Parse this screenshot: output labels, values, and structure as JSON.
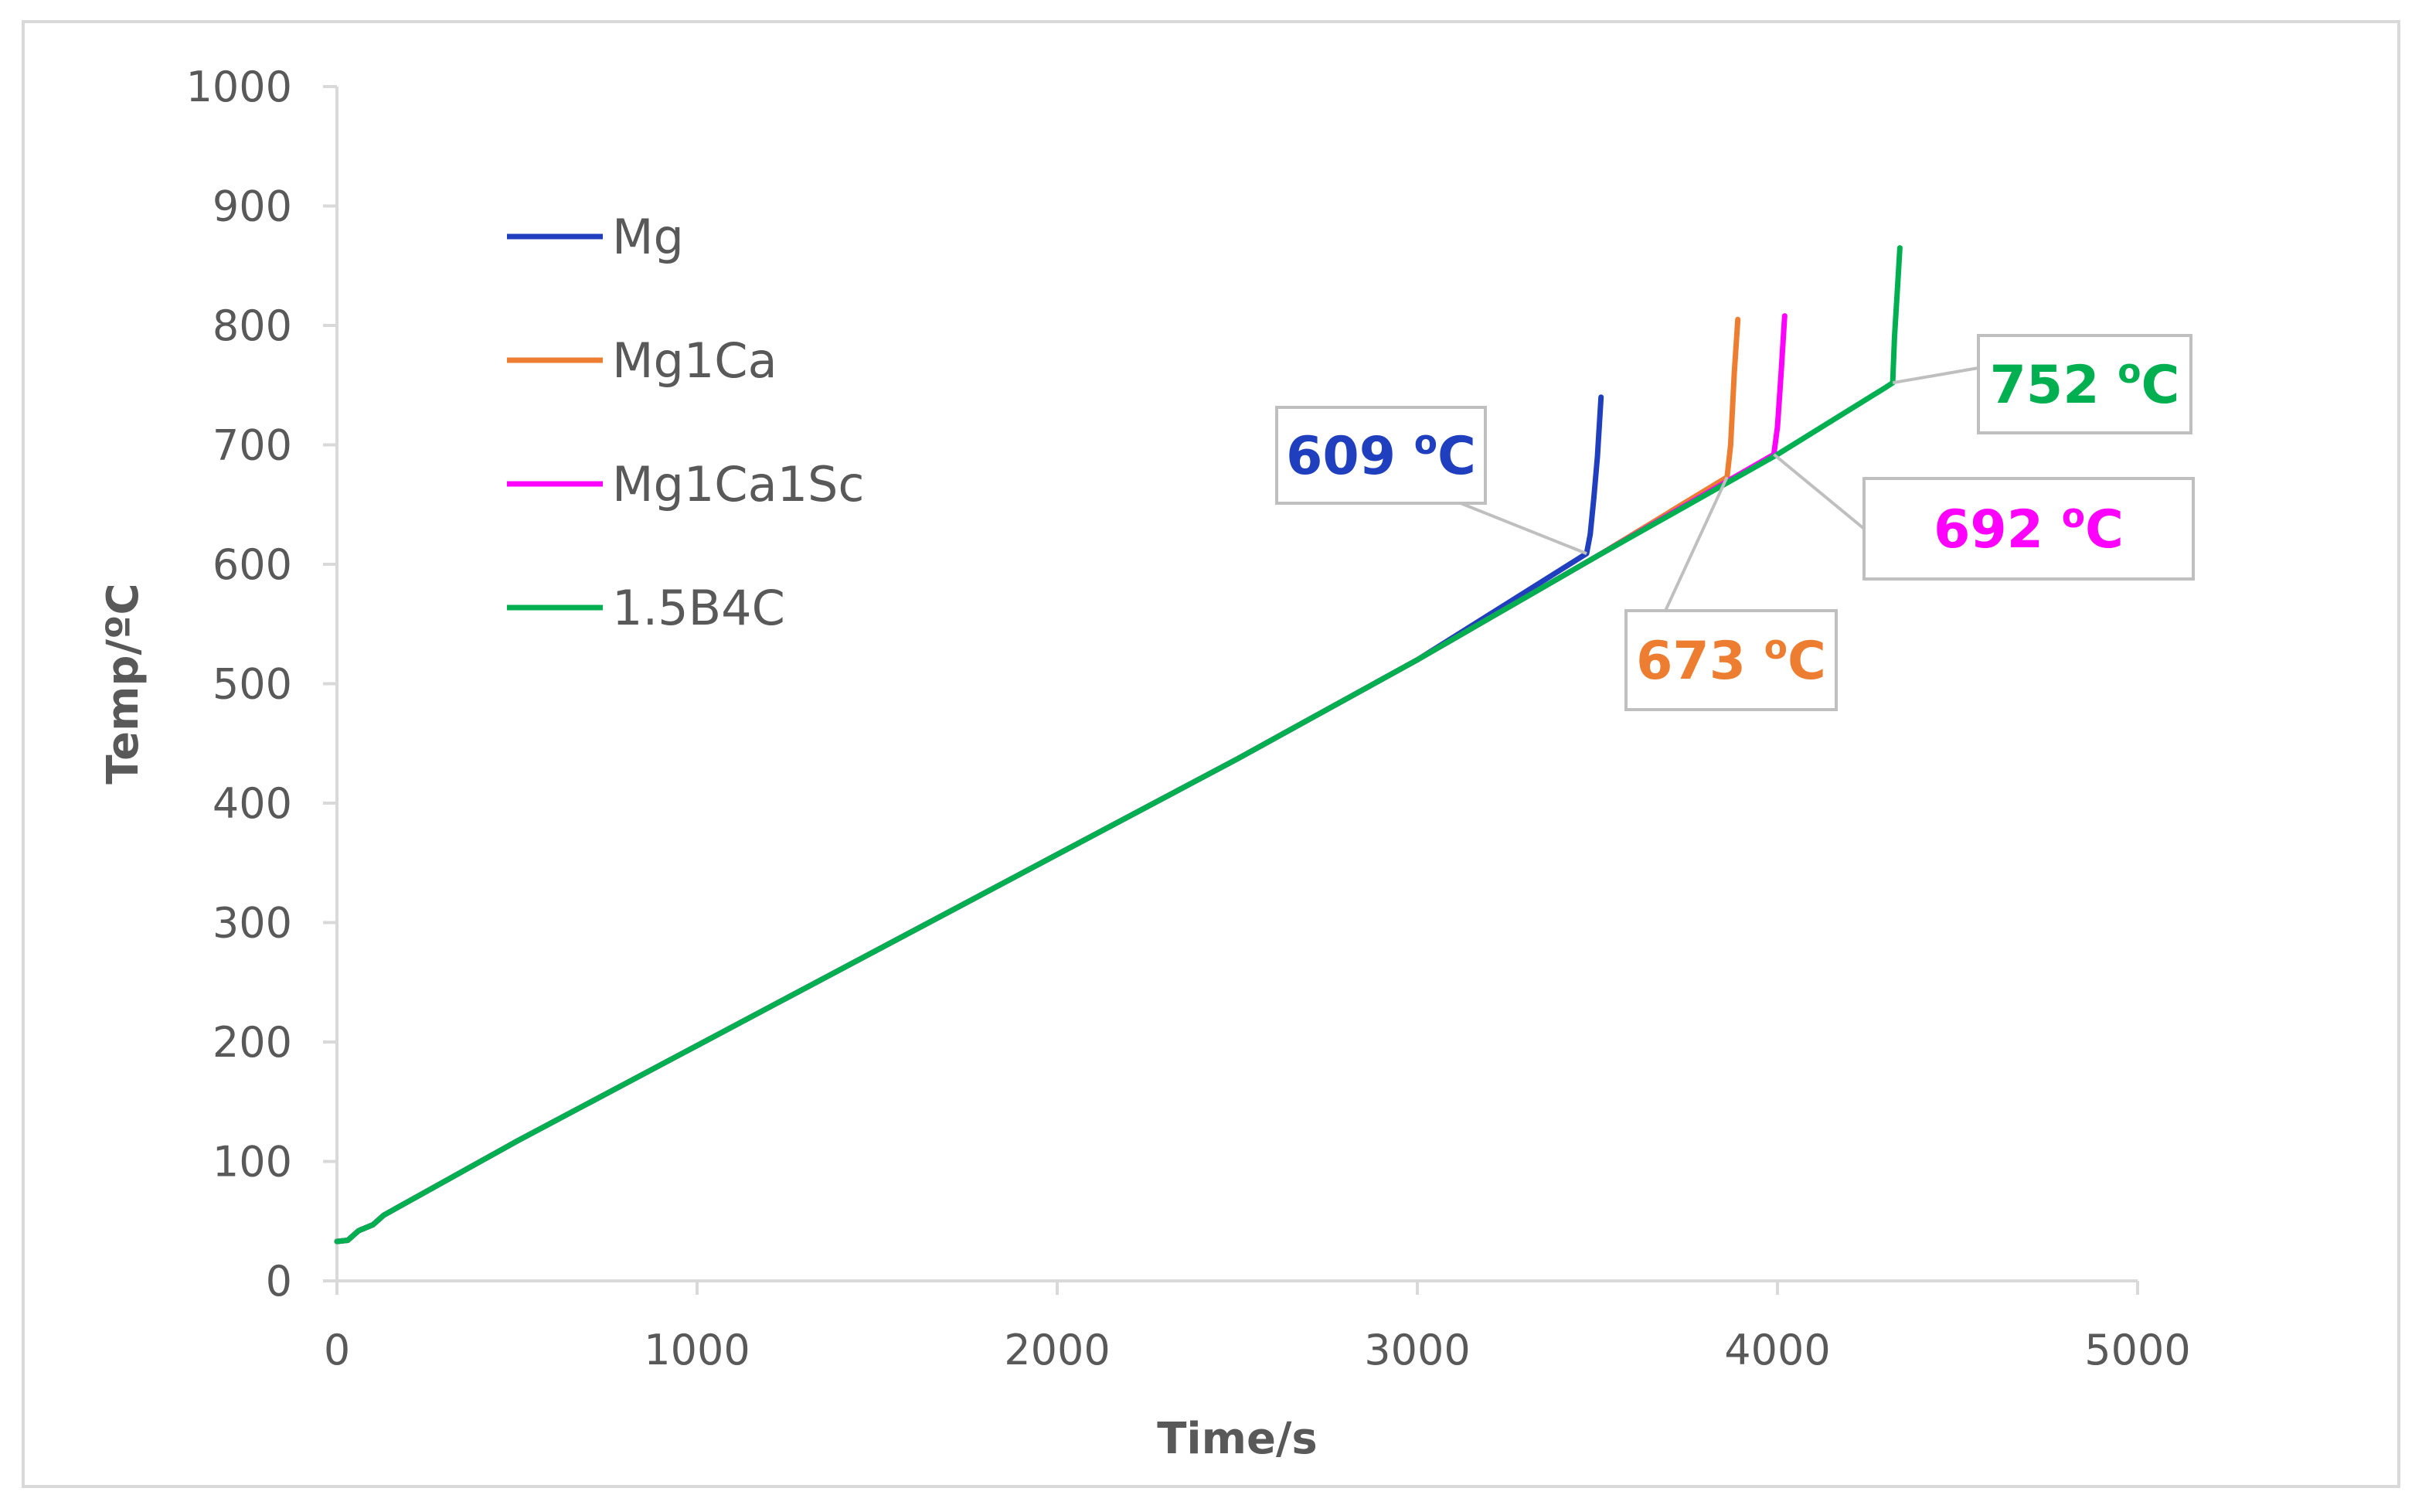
{
  "chart_data": {
    "type": "line",
    "title": "",
    "xlabel": "Time/s",
    "ylabel": "Temp/ºC",
    "xlim": [
      0,
      5000
    ],
    "ylim": [
      0,
      1000
    ],
    "x_ticks": [
      0,
      1000,
      2000,
      3000,
      4000,
      5000
    ],
    "y_ticks": [
      0,
      100,
      200,
      300,
      400,
      500,
      600,
      700,
      800,
      900,
      1000
    ],
    "x_tick_labels": [
      "0",
      "1000",
      "2000",
      "3000",
      "4000",
      "5000"
    ],
    "y_tick_labels": [
      "0",
      "100",
      "200",
      "300",
      "400",
      "500",
      "600",
      "700",
      "800",
      "900",
      "1000"
    ],
    "grid": false,
    "legend_position": "top-left",
    "series": [
      {
        "name": "Mg",
        "color": "#1f3fbf",
        "x": [
          0,
          30,
          60,
          100,
          130,
          500,
          1000,
          1500,
          2000,
          2500,
          3000,
          3470,
          3480,
          3490,
          3500,
          3510
        ],
        "y": [
          33,
          34,
          42,
          47,
          55,
          117,
          197,
          277,
          357,
          437,
          520,
          609,
          625,
          655,
          690,
          740
        ]
      },
      {
        "name": "Mg1Ca",
        "color": "#ed7d31",
        "x": [
          0,
          30,
          60,
          100,
          130,
          500,
          1000,
          1500,
          2000,
          2500,
          3000,
          3500,
          3860,
          3870,
          3880,
          3890
        ],
        "y": [
          33,
          34,
          42,
          47,
          55,
          117,
          197,
          277,
          357,
          437,
          520,
          607,
          673,
          700,
          760,
          805
        ]
      },
      {
        "name": "Mg1Ca1Sc",
        "color": "#ff00ff",
        "x": [
          0,
          30,
          60,
          100,
          130,
          500,
          1000,
          1500,
          2000,
          2500,
          3000,
          3500,
          3990,
          4000,
          4010,
          4020
        ],
        "y": [
          33,
          34,
          42,
          47,
          55,
          117,
          197,
          277,
          357,
          437,
          520,
          607,
          692,
          715,
          760,
          808
        ]
      },
      {
        "name": "1.5B4C",
        "color": "#00b050",
        "x": [
          0,
          30,
          60,
          100,
          130,
          500,
          1000,
          1500,
          2000,
          2500,
          3000,
          3500,
          4000,
          4300,
          4320,
          4325,
          4335,
          4340
        ],
        "y": [
          33,
          34,
          42,
          47,
          55,
          117,
          197,
          277,
          357,
          437,
          520,
          607,
          692,
          748,
          752,
          790,
          840,
          865
        ]
      }
    ],
    "annotations": [
      {
        "value": "609",
        "unit": "C",
        "sup": "o",
        "series": "Mg",
        "color": "#1f3fbf",
        "point": [
          3470,
          609
        ]
      },
      {
        "value": "673",
        "unit": "C",
        "sup": "o",
        "series": "Mg1Ca",
        "color": "#ed7d31",
        "point": [
          3860,
          673
        ]
      },
      {
        "value": "692",
        "unit": "C",
        "sup": "o",
        "series": "Mg1Ca1Sc",
        "color": "#ff00ff",
        "point": [
          3990,
          692
        ]
      },
      {
        "value": "752",
        "unit": "C",
        "sup": "o",
        "series": "1.5B4C",
        "color": "#00b050",
        "point": [
          4320,
          752
        ]
      }
    ],
    "colors": {
      "axis": "#d9d9d9",
      "text": "#595959",
      "frame": "#d9d9d9",
      "leader": "#bfbfbf"
    }
  }
}
